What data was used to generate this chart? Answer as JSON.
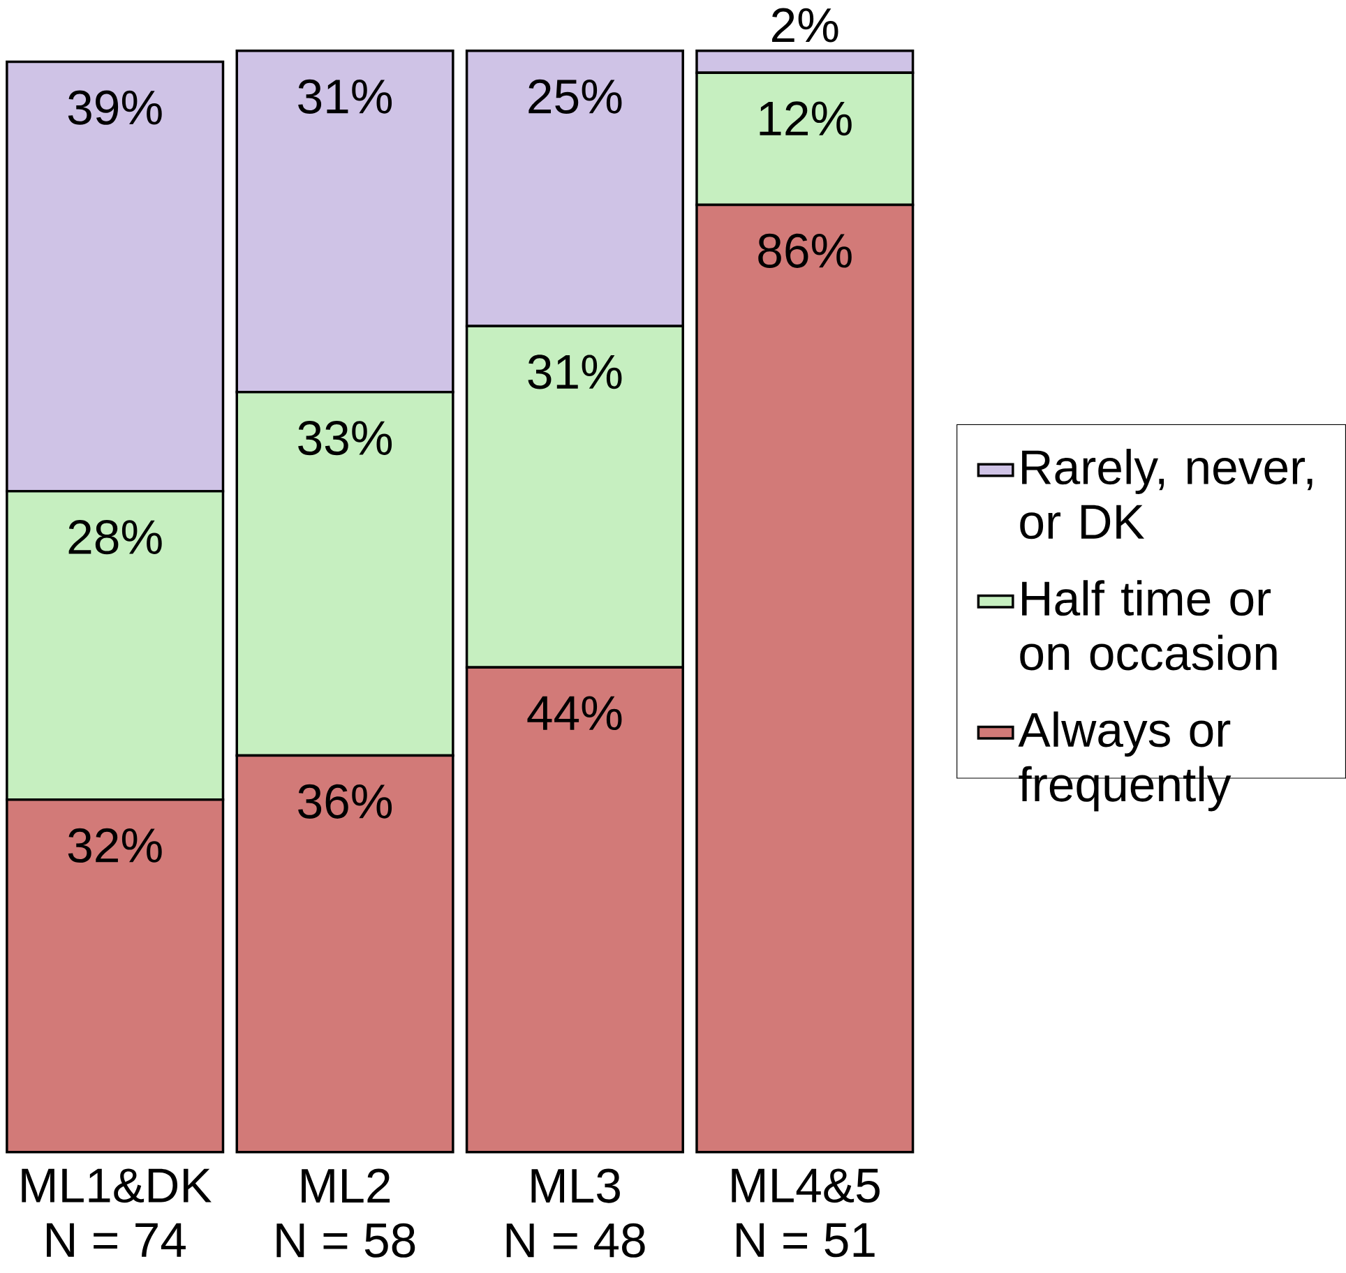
{
  "chart_data": {
    "type": "bar",
    "stacked": true,
    "tick_labels": "x",
    "legend": "right",
    "categories": [
      "ML1&DK\nN = 74",
      "ML2\nN = 58",
      "ML3\nN = 48",
      "ML4&5\nN = 51"
    ],
    "series": [
      {
        "name": "Always or frequently",
        "color": "#d27a78",
        "values": [
          32,
          36,
          44,
          86
        ],
        "value_labels": [
          "32%",
          "36%",
          "44%",
          "86%"
        ]
      },
      {
        "name": "Half time or on occasion",
        "color": "#c6efc0",
        "values": [
          28,
          33,
          31,
          12
        ],
        "value_labels": [
          "28%",
          "33%",
          "31%",
          "12%"
        ]
      },
      {
        "name": "Rarely, never, or DK",
        "color": "#cfc3e6",
        "values": [
          39,
          31,
          25,
          2
        ],
        "value_labels": [
          "39%",
          "31%",
          "25%",
          "2%"
        ]
      }
    ]
  }
}
